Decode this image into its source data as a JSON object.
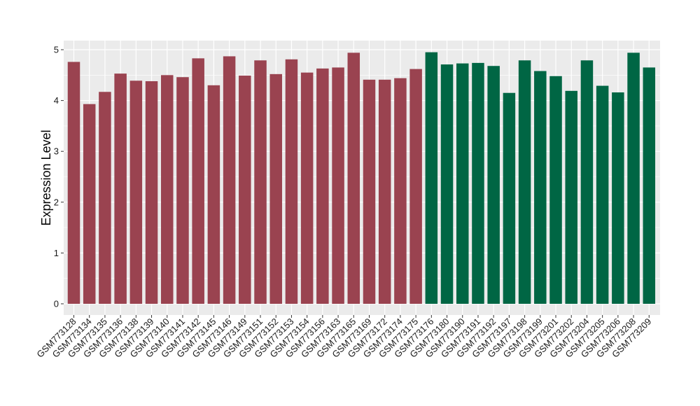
{
  "chart_data": {
    "type": "bar",
    "title": "",
    "xlabel": "",
    "ylabel": "Expression Level",
    "ylim": [
      0,
      5
    ],
    "yticks": [
      0,
      1,
      2,
      3,
      4,
      5
    ],
    "grid": true,
    "legend": "none",
    "colors": {
      "group1": "#9a4350",
      "group2": "#006644",
      "panel": "#ebebeb",
      "gridline": "#ffffff"
    },
    "categories": [
      "GSM773128",
      "GSM773134",
      "GSM773135",
      "GSM773136",
      "GSM773138",
      "GSM773139",
      "GSM773140",
      "GSM773141",
      "GSM773142",
      "GSM773145",
      "GSM773146",
      "GSM773149",
      "GSM773151",
      "GSM773152",
      "GSM773153",
      "GSM773154",
      "GSM773156",
      "GSM773163",
      "GSM773165",
      "GSM773169",
      "GSM773172",
      "GSM773174",
      "GSM773175",
      "GSM773176",
      "GSM773180",
      "GSM773190",
      "GSM773191",
      "GSM773192",
      "GSM773197",
      "GSM773198",
      "GSM773199",
      "GSM773201",
      "GSM773202",
      "GSM773204",
      "GSM773205",
      "GSM773206",
      "GSM773208",
      "GSM773209"
    ],
    "values": [
      4.76,
      3.93,
      4.17,
      4.53,
      4.39,
      4.38,
      4.5,
      4.46,
      4.83,
      4.3,
      4.87,
      4.49,
      4.79,
      4.52,
      4.81,
      4.55,
      4.63,
      4.65,
      4.94,
      4.41,
      4.41,
      4.44,
      4.62,
      4.95,
      4.71,
      4.73,
      4.74,
      4.68,
      4.15,
      4.79,
      4.58,
      4.48,
      4.19,
      4.79,
      4.29,
      4.16,
      4.94,
      4.65
    ],
    "groups": [
      1,
      1,
      1,
      1,
      1,
      1,
      1,
      1,
      1,
      1,
      1,
      1,
      1,
      1,
      1,
      1,
      1,
      1,
      1,
      1,
      1,
      1,
      1,
      2,
      2,
      2,
      2,
      2,
      2,
      2,
      2,
      2,
      2,
      2,
      2,
      2,
      2,
      2
    ]
  }
}
